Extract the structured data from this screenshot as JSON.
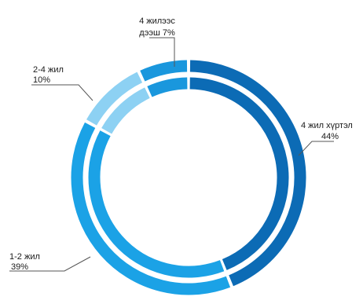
{
  "chart_data": {
    "type": "pie",
    "style": "double-ring donut",
    "title": "",
    "categories": [
      "4 жил хүртэл",
      "1-2 жил",
      "2-4 жил",
      "4 жилээс дээш"
    ],
    "values": [
      44,
      39,
      10,
      7
    ],
    "labels": [
      {
        "name": "4 жил хүртэл",
        "pct": "44%"
      },
      {
        "name": "1-2 жил",
        "pct": "39%"
      },
      {
        "name": "2-4 жил",
        "pct": "10%"
      },
      {
        "name": "4 жилээс дээш",
        "pct": "7%"
      }
    ],
    "colors": [
      "#0c6bb5",
      "#1ba2e6",
      "#8dd1f3",
      "#1a97dd"
    ],
    "label_texts": {
      "seg0_line1": "4 жил хүртэл",
      "seg0_line2": "44%",
      "seg1_line1": "1-2 жил",
      "seg1_line2": "39%",
      "seg2_line1": "2-4 жил",
      "seg2_line2": "10%",
      "seg3_line1": "4 жилээс",
      "seg3_line2": "дээш 7%"
    }
  }
}
